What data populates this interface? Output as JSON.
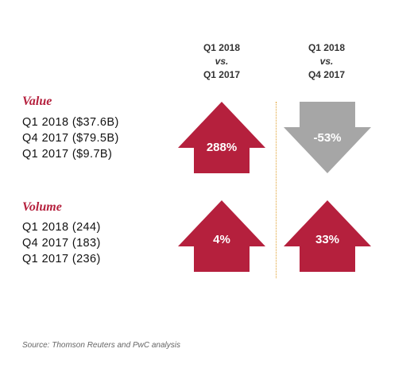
{
  "columns": [
    {
      "line1": "Q1 2018",
      "line2": "vs.",
      "line3": "Q1 2017"
    },
    {
      "line1": "Q1 2018",
      "line2": "vs.",
      "line3": "Q4 2017"
    }
  ],
  "sections": {
    "value": {
      "title": "Value",
      "items": [
        "Q1 2018 ($37.6B)",
        "Q4 2017 ($79.5B)",
        "Q1 2017 ($9.7B)"
      ]
    },
    "volume": {
      "title": "Volume",
      "items": [
        "Q1 2018 (244)",
        "Q4 2017 (183)",
        "Q1 2017 (236)"
      ]
    }
  },
  "arrows": {
    "value_yoy": {
      "label": "288%",
      "direction": "up",
      "color": "#b5203d"
    },
    "value_qoq": {
      "label": "-53%",
      "direction": "down",
      "color": "#a6a6a6"
    },
    "volume_yoy": {
      "label": "4%",
      "direction": "up",
      "color": "#b5203d"
    },
    "volume_qoq": {
      "label": "33%",
      "direction": "up",
      "color": "#b5203d"
    }
  },
  "source": "Source: Thomson Reuters and PwC analysis",
  "chart_data": {
    "type": "table",
    "columns": [
      "Q1 2018 vs. Q1 2017",
      "Q1 2018 vs. Q4 2017"
    ],
    "rows": [
      {
        "metric": "Value",
        "values": [
          288,
          -53
        ],
        "unit": "%"
      },
      {
        "metric": "Volume",
        "values": [
          4,
          33
        ],
        "unit": "%"
      }
    ],
    "value": [
      {
        "period": "Q1 2018",
        "amount_billion_usd": 37.6
      },
      {
        "period": "Q4 2017",
        "amount_billion_usd": 79.5
      },
      {
        "period": "Q1 2017",
        "amount_billion_usd": 9.7
      }
    ],
    "volume": [
      {
        "period": "Q1 2018",
        "deals": 244
      },
      {
        "period": "Q4 2017",
        "deals": 183
      },
      {
        "period": "Q1 2017",
        "deals": 236
      }
    ]
  }
}
